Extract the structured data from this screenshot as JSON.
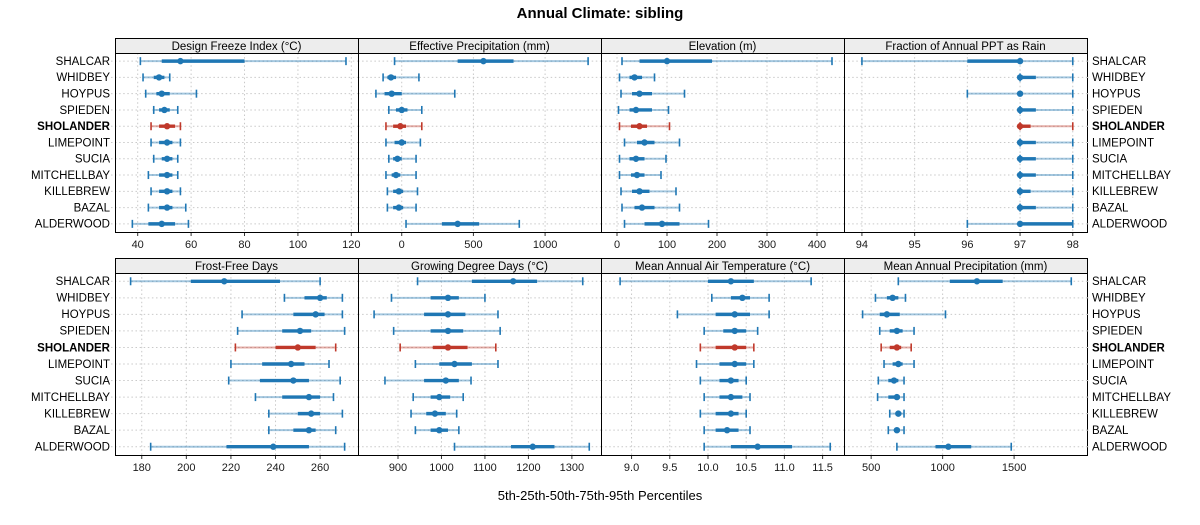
{
  "title": "Annual Climate: sibling",
  "caption": "5th-25th-50th-75th-95th Percentiles",
  "colors": {
    "series": "#1f77b4",
    "highlight": "#c0392b",
    "header_bg": "#ededed",
    "grid": "#c9c9c9",
    "border": "#000000",
    "tick_text": "#1a1a1a",
    "label_text": "#000000"
  },
  "chart_data": {
    "type": "dotplot-interval",
    "percentile_labels": [
      "5th",
      "25th",
      "50th",
      "75th",
      "95th"
    ],
    "sites": [
      "SHALCAR",
      "WHIDBEY",
      "HOYPUS",
      "SPIEDEN",
      "SHOLANDER",
      "LIMEPOINT",
      "SUCIA",
      "MITCHELLBAY",
      "KILLEBREW",
      "BAZAL",
      "ALDERWOOD"
    ],
    "highlight_site": "SHOLANDER",
    "panels": [
      {
        "title": "Design Freeze Index (°C)",
        "xlim": [
          31.5,
          122.5
        ],
        "tick_values": [
          40,
          60,
          80,
          100,
          120
        ],
        "tick_labels": [
          "40",
          "60",
          "80",
          "100",
          "120"
        ],
        "values": [
          [
            41,
            49,
            56,
            80,
            118
          ],
          [
            42,
            46,
            48,
            50,
            52
          ],
          [
            43,
            47,
            49,
            52,
            62
          ],
          [
            46,
            48,
            50,
            52,
            55
          ],
          [
            45,
            48,
            51,
            54,
            56
          ],
          [
            45,
            48,
            51,
            53,
            56
          ],
          [
            46,
            49,
            51,
            53,
            55
          ],
          [
            44,
            48,
            51,
            53,
            55
          ],
          [
            45,
            48,
            51,
            53,
            56
          ],
          [
            44,
            48,
            51,
            53,
            58
          ],
          [
            38,
            44,
            49,
            54,
            59
          ]
        ]
      },
      {
        "title": "Effective Precipitation (mm)",
        "xlim": [
          -305,
          1390
        ],
        "tick_values": [
          0,
          500,
          1000
        ],
        "tick_labels": [
          "0",
          "500",
          "1000"
        ],
        "values": [
          [
            -50,
            390,
            570,
            780,
            1300
          ],
          [
            -130,
            -100,
            -75,
            -40,
            120
          ],
          [
            -180,
            -120,
            -70,
            0,
            370
          ],
          [
            -90,
            -40,
            0,
            40,
            140
          ],
          [
            -110,
            -60,
            -10,
            30,
            140
          ],
          [
            -110,
            -50,
            0,
            30,
            130
          ],
          [
            -90,
            -60,
            -30,
            0,
            100
          ],
          [
            -110,
            -70,
            -40,
            -10,
            100
          ],
          [
            -100,
            -60,
            -20,
            10,
            110
          ],
          [
            -100,
            -60,
            -20,
            10,
            100
          ],
          [
            30,
            280,
            390,
            540,
            820
          ]
        ]
      },
      {
        "title": "Elevation (m)",
        "xlim": [
          -32,
          454
        ],
        "tick_values": [
          0,
          100,
          200,
          300,
          400
        ],
        "tick_labels": [
          "0",
          "100",
          "200",
          "300",
          "400"
        ],
        "values": [
          [
            10,
            45,
            100,
            190,
            430
          ],
          [
            5,
            25,
            35,
            50,
            75
          ],
          [
            8,
            30,
            45,
            70,
            135
          ],
          [
            3,
            25,
            38,
            70,
            103
          ],
          [
            5,
            28,
            45,
            60,
            105
          ],
          [
            15,
            40,
            55,
            75,
            125
          ],
          [
            5,
            25,
            38,
            55,
            98
          ],
          [
            5,
            28,
            40,
            55,
            88
          ],
          [
            8,
            30,
            45,
            65,
            118
          ],
          [
            10,
            35,
            50,
            75,
            125
          ],
          [
            15,
            55,
            90,
            125,
            183
          ]
        ]
      },
      {
        "title": "Fraction of Annual PPT as Rain",
        "xlim": [
          93.66,
          98.27
        ],
        "tick_values": [
          94,
          95,
          96,
          97,
          98
        ],
        "tick_labels": [
          "94",
          "95",
          "96",
          "97",
          "98"
        ],
        "values": [
          [
            94,
            96,
            97,
            97,
            98
          ],
          [
            97,
            97,
            97,
            97.3,
            98
          ],
          [
            96,
            97,
            97,
            97,
            98
          ],
          [
            97,
            97,
            97,
            97.3,
            98
          ],
          [
            97,
            97,
            97,
            97.2,
            98
          ],
          [
            97,
            97,
            97,
            97.3,
            98
          ],
          [
            97,
            97,
            97,
            97.3,
            98
          ],
          [
            97,
            97,
            97,
            97.3,
            98
          ],
          [
            97,
            97,
            97,
            97.2,
            98
          ],
          [
            97,
            97,
            97,
            97.3,
            98
          ],
          [
            96,
            97,
            97,
            98,
            98
          ]
        ]
      },
      {
        "title": "Frost-Free Days",
        "xlim": [
          168,
          277
        ],
        "tick_values": [
          180,
          200,
          220,
          240,
          260
        ],
        "tick_labels": [
          "180",
          "200",
          "220",
          "240",
          "260"
        ],
        "values": [
          [
            175,
            202,
            217,
            242,
            260
          ],
          [
            244,
            253,
            260,
            263,
            270
          ],
          [
            225,
            248,
            258,
            262,
            270
          ],
          [
            223,
            243,
            251,
            256,
            271
          ],
          [
            222,
            240,
            250,
            258,
            267
          ],
          [
            220,
            234,
            247,
            253,
            264
          ],
          [
            219,
            233,
            248,
            255,
            269
          ],
          [
            231,
            243,
            255,
            260,
            266
          ],
          [
            237,
            250,
            256,
            260,
            270
          ],
          [
            237,
            248,
            255,
            258,
            267
          ],
          [
            184,
            218,
            239,
            255,
            271
          ]
        ]
      },
      {
        "title": "Growing Degree Days (°C)",
        "xlim": [
          808,
          1367
        ],
        "tick_values": [
          900,
          1000,
          1100,
          1200,
          1300
        ],
        "tick_labels": [
          "900",
          "1000",
          "1100",
          "1200",
          "1300"
        ],
        "values": [
          [
            945,
            1070,
            1165,
            1220,
            1325
          ],
          [
            885,
            975,
            1015,
            1040,
            1100
          ],
          [
            845,
            960,
            1015,
            1055,
            1130
          ],
          [
            890,
            975,
            1015,
            1050,
            1135
          ],
          [
            905,
            980,
            1015,
            1060,
            1125
          ],
          [
            940,
            995,
            1030,
            1070,
            1130
          ],
          [
            870,
            960,
            1010,
            1040,
            1068
          ],
          [
            935,
            975,
            995,
            1020,
            1050
          ],
          [
            930,
            965,
            985,
            1010,
            1035
          ],
          [
            940,
            975,
            995,
            1015,
            1040
          ],
          [
            1030,
            1160,
            1210,
            1260,
            1340
          ]
        ]
      },
      {
        "title": "Mean Annual Air Temperature (°C)",
        "xlim": [
          8.6,
          11.78
        ],
        "tick_values": [
          9.0,
          9.5,
          10.0,
          10.5,
          11.0,
          11.5
        ],
        "tick_labels": [
          "9.0",
          "9.5",
          "10.0",
          "10.5",
          "11.0",
          "11.5"
        ],
        "values": [
          [
            8.85,
            10.0,
            10.3,
            10.6,
            11.35
          ],
          [
            10.05,
            10.3,
            10.45,
            10.55,
            10.8
          ],
          [
            9.6,
            10.1,
            10.35,
            10.55,
            10.8
          ],
          [
            9.95,
            10.2,
            10.35,
            10.5,
            10.65
          ],
          [
            9.9,
            10.1,
            10.35,
            10.5,
            10.6
          ],
          [
            9.85,
            10.15,
            10.35,
            10.5,
            10.6
          ],
          [
            9.9,
            10.15,
            10.3,
            10.4,
            10.5
          ],
          [
            9.95,
            10.15,
            10.3,
            10.45,
            10.55
          ],
          [
            9.9,
            10.1,
            10.3,
            10.4,
            10.5
          ],
          [
            9.95,
            10.1,
            10.25,
            10.4,
            10.55
          ],
          [
            9.95,
            10.3,
            10.65,
            11.1,
            11.6
          ]
        ]
      },
      {
        "title": "Mean Annual Precipitation (mm)",
        "xlim": [
          310,
          2010
        ],
        "tick_values": [
          500,
          1000,
          1500
        ],
        "tick_labels": [
          "500",
          "1000",
          "1500"
        ],
        "values": [
          [
            690,
            1050,
            1240,
            1420,
            1900
          ],
          [
            530,
            610,
            650,
            690,
            740
          ],
          [
            440,
            560,
            610,
            700,
            1020
          ],
          [
            560,
            630,
            680,
            720,
            800
          ],
          [
            570,
            630,
            680,
            710,
            780
          ],
          [
            590,
            650,
            690,
            720,
            800
          ],
          [
            550,
            620,
            660,
            690,
            730
          ],
          [
            545,
            620,
            680,
            700,
            730
          ],
          [
            630,
            670,
            690,
            710,
            730
          ],
          [
            620,
            660,
            680,
            700,
            730
          ],
          [
            680,
            950,
            1040,
            1200,
            1480
          ]
        ]
      }
    ]
  }
}
